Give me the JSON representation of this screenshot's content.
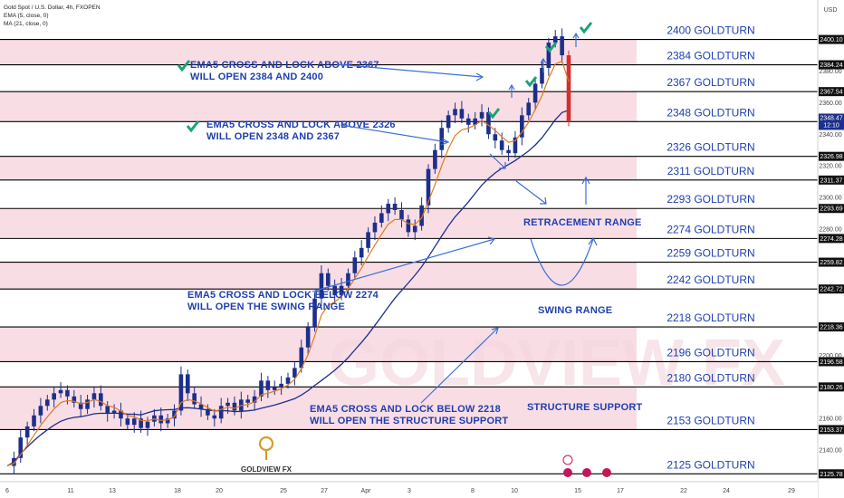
{
  "header": {
    "symbol": "Gold Spot / U.S. Dollar, 4h, FXOPEN",
    "indicator1": "EMA (5, close, 0)",
    "indicator2": "MA (21, close, 0)",
    "currency": "USD"
  },
  "watermark": "GOLDVIEW FX",
  "logo_text": "GOLDVIEW FX",
  "colors": {
    "band": "#f9dde5",
    "level_line": "#000000",
    "annotation": "#1f3fae",
    "ema": "#e07b1d",
    "ma": "#1c2f8a",
    "candle": "#1c2f8a",
    "candle_drop": "#d32f2f",
    "check": "#1aa37a",
    "price_tag": "#1c2f8a"
  },
  "chart_data": {
    "type": "candlestick",
    "ylim": [
      2120,
      2425
    ],
    "x_ticks": [
      "6",
      "11",
      "13",
      "18",
      "20",
      "25",
      "27",
      "Apr",
      "3",
      "8",
      "10",
      "15",
      "17",
      "22",
      "24",
      "29"
    ],
    "y_ticks": [
      2140,
      2160,
      2200,
      2260,
      2280,
      2300,
      2320,
      2340,
      2360,
      2380
    ],
    "levels": [
      {
        "price": 2400,
        "label": "2400 GOLDTURN",
        "tag": "2400.10"
      },
      {
        "price": 2384,
        "label": "2384 GOLDTURN",
        "tag": "2384.24"
      },
      {
        "price": 2367,
        "label": "2367 GOLDTURN",
        "tag": "2367.54"
      },
      {
        "price": 2348,
        "label": "2348 GOLDTURN",
        "tag": "2348.13"
      },
      {
        "price": 2326,
        "label": "2326 GOLDTURN",
        "tag": "2326.98"
      },
      {
        "price": 2311,
        "label": "2311 GOLDTURN",
        "tag": "2311.37"
      },
      {
        "price": 2293,
        "label": "2293 GOLDTURN",
        "tag": "2293.69"
      },
      {
        "price": 2274,
        "label": "2274 GOLDTURN",
        "tag": "2274.28"
      },
      {
        "price": 2259,
        "label": "2259 GOLDTURN",
        "tag": "2259.82"
      },
      {
        "price": 2242,
        "label": "2242 GOLDTURN",
        "tag": "2242.72"
      },
      {
        "price": 2218,
        "label": "2218 GOLDTURN",
        "tag": "2218.36"
      },
      {
        "price": 2196,
        "label": "2196 GOLDTURN",
        "tag": "2196.58"
      },
      {
        "price": 2180,
        "label": "2180 GOLDTURN",
        "tag": "2180.26"
      },
      {
        "price": 2153,
        "label": "2153 GOLDTURN",
        "tag": "2153.37"
      },
      {
        "price": 2125,
        "label": "2125 GOLDTURN",
        "tag": "2125.78"
      }
    ],
    "bands": [
      [
        2384,
        2400
      ],
      [
        2348,
        2367
      ],
      [
        2311,
        2326
      ],
      [
        2274,
        2293
      ],
      [
        2242,
        2259
      ],
      [
        2196,
        2218
      ],
      [
        2153,
        2180
      ]
    ],
    "current_price": {
      "value": "2348.47",
      "countdown": "12:10"
    },
    "price_path": [
      2130,
      2135,
      2148,
      2155,
      2162,
      2168,
      2172,
      2176,
      2178,
      2174,
      2170,
      2166,
      2172,
      2176,
      2168,
      2163,
      2165,
      2160,
      2156,
      2160,
      2154,
      2158,
      2162,
      2157,
      2160,
      2165,
      2188,
      2176,
      2169,
      2166,
      2162,
      2160,
      2168,
      2170,
      2165,
      2172,
      2170,
      2174,
      2184,
      2178,
      2180,
      2182,
      2186,
      2192,
      2205,
      2218,
      2236,
      2252,
      2244,
      2238,
      2244,
      2252,
      2262,
      2268,
      2278,
      2284,
      2290,
      2296,
      2292,
      2286,
      2278,
      2282,
      2295,
      2318,
      2330,
      2344,
      2352,
      2356,
      2350,
      2346,
      2350,
      2354,
      2340,
      2336,
      2330,
      2328,
      2338,
      2352,
      2360,
      2372,
      2382,
      2398,
      2402,
      2390,
      2348
    ]
  },
  "annotations": {
    "a1_line1": "EMA5 CROSS AND LOCK ABOVE 2367",
    "a1_line2": "WILL OPEN 2384 AND 2400",
    "a2_line1": "EMA5 CROSS AND LOCK ABOVE 2326",
    "a2_line2": "WILL OPEN 2348 AND 2367",
    "a3_line1": "EMA5 CROSS AND LOCK BELOW 2274",
    "a3_line2": "WILL OPEN THE SWING RANGE",
    "a4_line1": "EMA5 CROSS AND LOCK BELOW 2218",
    "a4_line2": "WILL OPEN THE STRUCTURE SUPPORT",
    "retracement": "RETRACEMENT RANGE",
    "swing": "SWING RANGE",
    "structure": "STRUCTURE SUPPORT"
  }
}
